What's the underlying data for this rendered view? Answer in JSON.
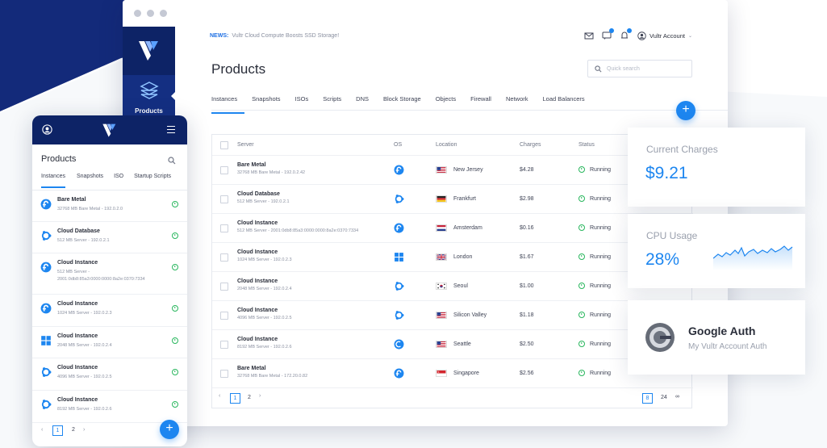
{
  "colors": {
    "brand_dark": "#0d2366",
    "accent": "#1d86f0",
    "running": "#28b65d"
  },
  "news": {
    "label": "NEWS:",
    "text": "Vultr Cloud Compute Boosts SSD Storage!"
  },
  "sidebar": {
    "item_label": "Products"
  },
  "header": {
    "account": "Vultr Account"
  },
  "page": {
    "title": "Products",
    "search_placeholder": "Quick search"
  },
  "tabs": [
    "Instances",
    "Snapshots",
    "ISOs",
    "Scripts",
    "DNS",
    "Block Storage",
    "Objects",
    "Firewall",
    "Network",
    "Load Balancers"
  ],
  "table": {
    "headers": {
      "server": "Server",
      "os": "OS",
      "location": "Location",
      "charges": "Charges",
      "status": "Status"
    },
    "rows": [
      {
        "name": "Bare Metal",
        "sub": "32768 MB Bare Metal - 192.0.2.42",
        "os": "fedora-icon",
        "flag": "us",
        "location": "New Jersey",
        "charges": "$4.28",
        "status": "Running"
      },
      {
        "name": "Cloud Database",
        "sub": "512 MB Server - 192.0.2.1",
        "os": "ubuntu-icon",
        "flag": "de",
        "location": "Frankfurt",
        "charges": "$2.98",
        "status": "Running"
      },
      {
        "name": "Cloud Instance",
        "sub": "512 MB Server - 2001:0db8:85a3:0000:0000:8a2e:0370:7334",
        "os": "fedora-icon",
        "flag": "nl",
        "location": "Amsterdam",
        "charges": "$0.16",
        "status": "Running"
      },
      {
        "name": "Cloud Instance",
        "sub": "1024 MB Server - 192.0.2.3",
        "os": "windows-icon",
        "flag": "gb",
        "location": "London",
        "charges": "$1.67",
        "status": "Running"
      },
      {
        "name": "Cloud Instance",
        "sub": "2048 MB Server - 192.0.2.4",
        "os": "ubuntu-icon",
        "flag": "kr",
        "location": "Seoul",
        "charges": "$1.00",
        "status": "Running"
      },
      {
        "name": "Cloud Instance",
        "sub": "4096 MB Server - 192.0.2.5",
        "os": "ubuntu-icon",
        "flag": "us",
        "location": "Silicon Valley",
        "charges": "$1.18",
        "status": "Running"
      },
      {
        "name": "Cloud Instance",
        "sub": "8192 MB Server - 192.0.2.6",
        "os": "debian-icon",
        "flag": "us",
        "location": "Seattle",
        "charges": "$2.50",
        "status": "Running"
      },
      {
        "name": "Bare Metal",
        "sub": "32768 MB Bare Metal - 172.20.0.82",
        "os": "fedora-icon",
        "flag": "sg",
        "location": "Singapore",
        "charges": "$2.56",
        "status": "Running"
      }
    ],
    "pager": {
      "page1": "1",
      "page2": "2",
      "per_page": "8",
      "per_page_alt": "24",
      "per_page_all": "∞"
    }
  },
  "cards": {
    "charges": {
      "label": "Current Charges",
      "value": "$9.21"
    },
    "cpu": {
      "label": "CPU Usage",
      "value": "28%"
    },
    "auth": {
      "title": "Google Auth",
      "subtitle": "My Vultr Account Auth"
    }
  },
  "mobile": {
    "title": "Products",
    "tabs": [
      "Instances",
      "Snapshots",
      "ISO",
      "Startup Scripts"
    ],
    "items": [
      {
        "name": "Bare Metal",
        "sub": "32768 MB Bare Metal - 192.0.2.0",
        "os": "fedora-icon"
      },
      {
        "name": "Cloud Database",
        "sub": "512 MB Server - 192.0.2.1",
        "os": "ubuntu-icon"
      },
      {
        "name": "Cloud Instance",
        "sub": "512 MB Server -",
        "sub2": "2001:0db8:85a3:0000:0000:8a2e:0370:7334",
        "os": "fedora-icon"
      },
      {
        "name": "Cloud Instance",
        "sub": "1024 MB Server - 192.0.2.3",
        "os": "fedora-icon"
      },
      {
        "name": "Cloud Instance",
        "sub": "2048 MB Server - 192.0.2.4",
        "os": "windows-icon"
      },
      {
        "name": "Cloud Instance",
        "sub": "4096 MB Server - 192.0.2.5",
        "os": "ubuntu-icon"
      },
      {
        "name": "Cloud Instance",
        "sub": "8192 MB Server - 192.0.2.6",
        "os": "ubuntu-icon"
      }
    ],
    "pager": {
      "page1": "1",
      "page2": "2"
    }
  }
}
